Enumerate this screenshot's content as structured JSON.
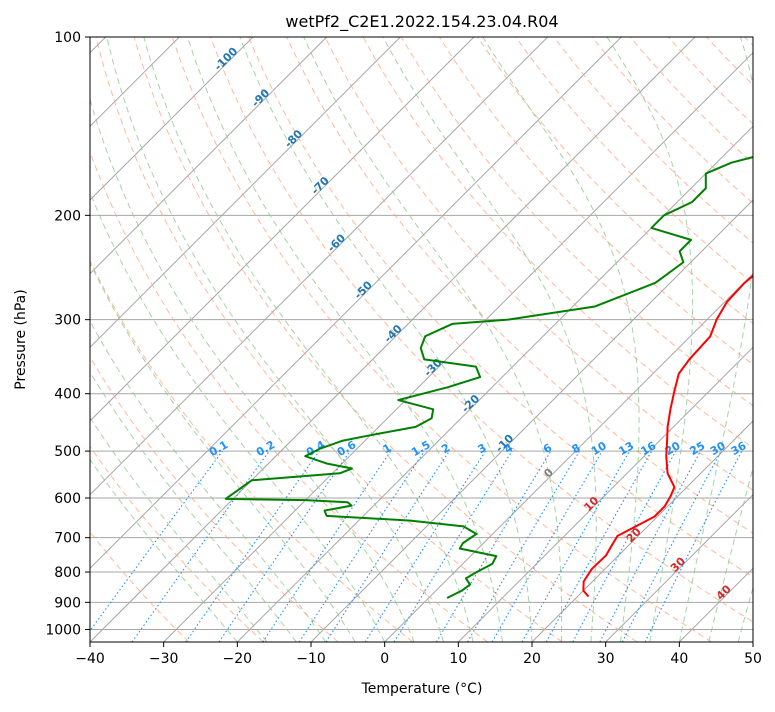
{
  "chart_data": {
    "type": "line",
    "title": "wetPf2_C2E1.2022.154.23.04.R04",
    "xlabel": "Temperature (°C)",
    "ylabel": "Pressure (hPa)",
    "xlim": [
      -40,
      50
    ],
    "ylim": [
      1050,
      100
    ],
    "y_scale": "log",
    "grid": true,
    "x_ticks": [
      -40,
      -30,
      -20,
      -10,
      0,
      10,
      20,
      30,
      40,
      50
    ],
    "y_ticks": [
      100,
      200,
      300,
      400,
      500,
      600,
      700,
      800,
      900,
      1000
    ],
    "x_tick_labels": [
      "−40",
      "−30",
      "−20",
      "−10",
      "0",
      "10",
      "20",
      "30",
      "40",
      "50"
    ],
    "y_tick_labels": [
      "100",
      "200",
      "300",
      "400",
      "500",
      "600",
      "700",
      "800",
      "900",
      "1000"
    ],
    "skew_deg": 45,
    "colors": {
      "temperature": "#ff0000",
      "dewpoint": "#008000",
      "isotherm": "#a6a6a6",
      "isobar": "#a6a6a6",
      "dry_adiabat": "#ffa07a",
      "moist_adiabat": "#90c890",
      "mixing_ratio": "#1e90ff",
      "theta_label": "#1f77b4",
      "isotherm_label": "#d62728",
      "zero_label": "#808080"
    },
    "series": [
      {
        "key": "temperature",
        "points": [
          [
            21.5,
            880
          ],
          [
            20,
            860
          ],
          [
            18.8,
            830
          ],
          [
            18.2,
            790
          ],
          [
            18.3,
            750
          ],
          [
            17.7,
            720
          ],
          [
            17.2,
            695
          ],
          [
            18.4,
            670
          ],
          [
            19.6,
            645
          ],
          [
            19.6,
            620
          ],
          [
            19,
            595
          ],
          [
            18.3,
            575
          ],
          [
            15.5,
            545
          ],
          [
            13,
            510
          ],
          [
            11,
            480
          ],
          [
            9.2,
            455
          ],
          [
            7.2,
            425
          ],
          [
            5.2,
            395
          ],
          [
            3.5,
            370
          ],
          [
            3,
            350
          ],
          [
            2.7,
            320
          ],
          [
            1.3,
            300
          ],
          [
            0.3,
            280
          ],
          [
            0.1,
            260
          ],
          [
            0.5,
            245
          ],
          [
            1.5,
            232
          ],
          [
            3.5,
            215
          ],
          [
            5.8,
            200
          ],
          [
            7.2,
            190
          ],
          [
            7.9,
            180
          ],
          [
            8.3,
            170
          ],
          [
            8.5,
            160
          ],
          [
            8.8,
            150
          ],
          [
            9.5,
            140
          ],
          [
            10.2,
            130
          ],
          [
            10.4,
            120
          ],
          [
            10.6,
            110
          ],
          [
            11.5,
            103
          ],
          [
            12.5,
            100
          ]
        ]
      },
      {
        "key": "dewpoint",
        "points": [
          [
            2.5,
            885
          ],
          [
            3.5,
            860
          ],
          [
            3.8,
            840
          ],
          [
            2.4,
            820
          ],
          [
            3,
            800
          ],
          [
            4,
            775
          ],
          [
            3.5,
            752
          ],
          [
            -2.5,
            730
          ],
          [
            -2.8,
            715
          ],
          [
            -2.2,
            690
          ],
          [
            -5,
            670
          ],
          [
            -13,
            655
          ],
          [
            -25,
            643
          ],
          [
            -26,
            630
          ],
          [
            -23,
            618
          ],
          [
            -24,
            610
          ],
          [
            -30,
            605
          ],
          [
            -41,
            602
          ],
          [
            -40,
            560
          ],
          [
            -29,
            545
          ],
          [
            -28,
            535
          ],
          [
            -32,
            525
          ],
          [
            -36,
            510
          ],
          [
            -35,
            495
          ],
          [
            -33,
            480
          ],
          [
            -30,
            470
          ],
          [
            -25,
            455
          ],
          [
            -24,
            440
          ],
          [
            -25,
            425
          ],
          [
            -31,
            410
          ],
          [
            -26,
            390
          ],
          [
            -23,
            375
          ],
          [
            -25,
            360
          ],
          [
            -33,
            350
          ],
          [
            -35,
            335
          ],
          [
            -36,
            320
          ],
          [
            -34,
            305
          ],
          [
            -27,
            300
          ],
          [
            -17,
            285
          ],
          [
            -12,
            260
          ],
          [
            -11,
            240
          ],
          [
            -13,
            230
          ],
          [
            -13,
            220
          ],
          [
            -20,
            210
          ],
          [
            -20,
            200
          ],
          [
            -18,
            190
          ],
          [
            -18,
            180
          ],
          [
            -20,
            170
          ],
          [
            -18,
            163
          ],
          [
            -13,
            155
          ],
          [
            -10,
            145
          ],
          [
            -9,
            135
          ],
          [
            -6,
            125
          ],
          [
            -4,
            115
          ],
          [
            0.5,
            106
          ],
          [
            4,
            100
          ]
        ]
      }
    ],
    "dry_adiabat_labels": [
      "-100",
      "-90",
      "-80",
      "-70",
      "-60",
      "-50",
      "-40",
      "-30",
      "-20",
      "-10"
    ],
    "mixing_ratio_labels": [
      "0.1",
      "0.2",
      "0.4",
      "0.6",
      "1",
      "1.5",
      "2",
      "3",
      "4",
      "6",
      "8",
      "10",
      "13",
      "16",
      "20",
      "25",
      "30",
      "36"
    ],
    "isotherm_labels": [
      "0",
      "10",
      "20",
      "30",
      "40"
    ]
  }
}
